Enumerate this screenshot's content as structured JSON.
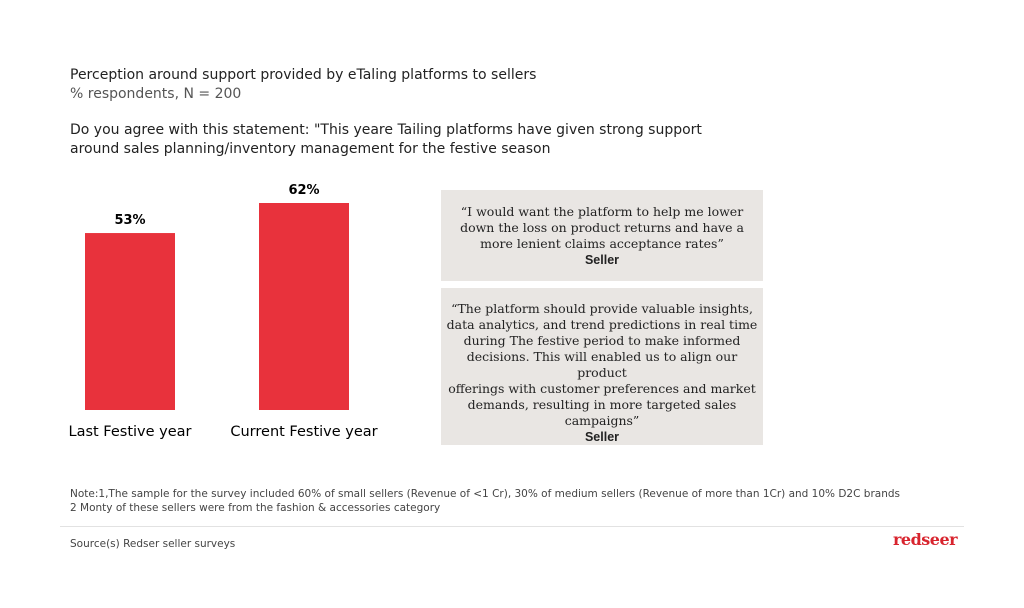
{
  "header": {
    "title": "Perception around support provided by eTaling platforms to sellers",
    "subtitle": "% respondents, N = 200",
    "question": [
      "Do you agree with this statement: \"This yeare Tailing platforms have given strong support",
      "around sales planning/inventory management for the festive season"
    ]
  },
  "chart_data": {
    "type": "bar",
    "categories": [
      "Last Festive year",
      "Current Festive year"
    ],
    "values": [
      53,
      62
    ],
    "value_labels": [
      "53%",
      "62%"
    ],
    "color": "#e8323c"
  },
  "quotes": [
    {
      "lines": [
        "“I would want the platform to help me lower",
        "down the loss on product returns and have a",
        "more lenient claims acceptance rates”"
      ],
      "author": "Seller"
    },
    {
      "lines": [
        "“The platform should provide valuable insights,",
        "data analytics, and trend predictions in real time",
        "during The festive period to make informed",
        "decisions. This will enabled us to align our product",
        "offerings with customer preferences and market",
        "demands, resulting in more targeted sales",
        "campaigns”"
      ],
      "author": "Seller"
    }
  ],
  "notes": [
    "Note:1,The sample for the survey included 60% of small sellers (Revenue of <1 Cr), 30% of medium sellers (Revenue of more than 1Cr) and 10% D2C brands",
    "2 Monty of these sellers were from the fashion & accessories category"
  ],
  "source": "Source(s) Redser seller surveys",
  "logo": "redseer"
}
